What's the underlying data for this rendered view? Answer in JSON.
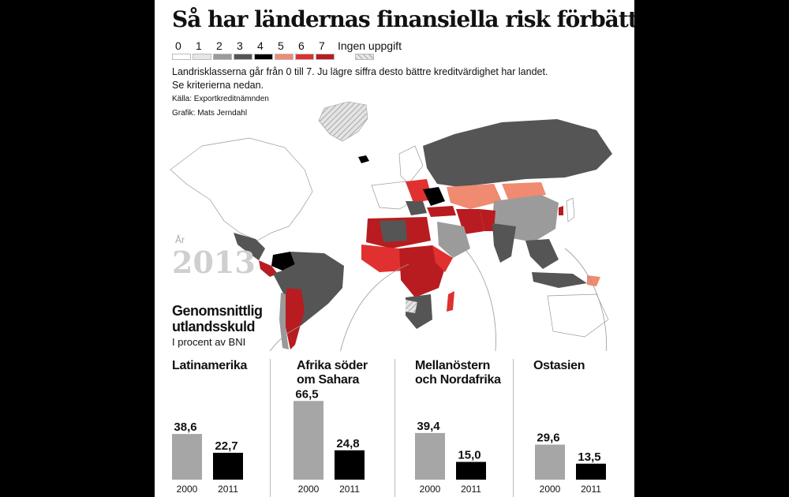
{
  "title": "Så har ländernas finansiella risk förbättrats",
  "legend": {
    "items": [
      {
        "label": "0",
        "color": "#ffffff"
      },
      {
        "label": "1",
        "color": "#e6e6e6"
      },
      {
        "label": "2",
        "color": "#9b9b9b"
      },
      {
        "label": "3",
        "color": "#555555"
      },
      {
        "label": "4",
        "color": "#000000"
      },
      {
        "label": "5",
        "color": "#f08a70"
      },
      {
        "label": "6",
        "color": "#e03030"
      },
      {
        "label": "7",
        "color": "#b81c20"
      }
    ],
    "no_data_label": "Ingen uppgift",
    "no_data_color": "#c8c8c8"
  },
  "description_line1": "Landrisklasserna går från 0 till 7. Ju lägre siffra desto bättre kreditvärdighet har landet.",
  "description_line2": "Se kriterierna nedan.",
  "source": "Källa: Exportkreditnämnden",
  "credit": "Grafik: Mats Jerndahl",
  "year_label": "År",
  "year": "2013",
  "debt_title": "Genomsnittlig utlandsskuld",
  "debt_subtitle": "I procent av BNI",
  "chart_data": {
    "type": "bar",
    "title": "Genomsnittlig utlandsskuld",
    "subtitle": "I procent av BNI",
    "categories": [
      "2000",
      "2011"
    ],
    "groups": [
      {
        "name": "Latinamerika",
        "values": [
          38.6,
          22.7
        ],
        "labels": [
          "38,6",
          "22,7"
        ]
      },
      {
        "name": "Afrika söder om Sahara",
        "values": [
          66.5,
          24.8
        ],
        "labels": [
          "66,5",
          "24,8"
        ]
      },
      {
        "name": "Mellanöstern och Nordafrika",
        "values": [
          39.4,
          15.0
        ],
        "labels": [
          "39,4",
          "15,0"
        ]
      },
      {
        "name": "Ostasien",
        "values": [
          29.6,
          13.5
        ],
        "labels": [
          "29,6",
          "13,5"
        ]
      }
    ],
    "colors": {
      "2000": "#a6a6a6",
      "2011": "#000000"
    }
  },
  "regions": {
    "latin": "Latinamerika",
    "africa_1": "Afrika söder",
    "africa_2": "om Sahara",
    "mena_1": "Mellanöstern",
    "mena_2": "och Nordafrika",
    "east_asia": "Ostasien"
  }
}
